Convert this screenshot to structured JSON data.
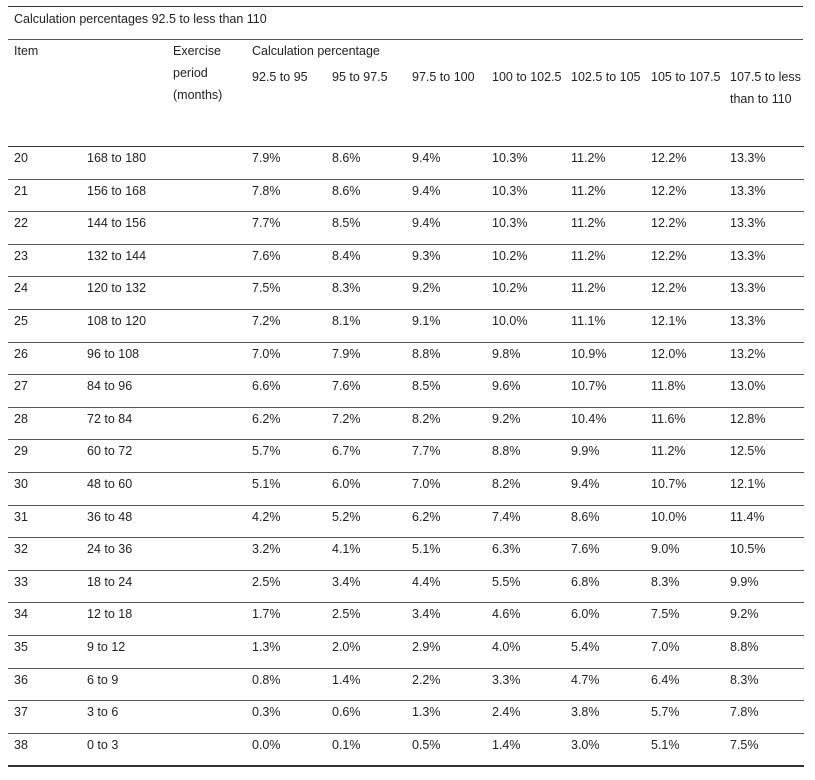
{
  "caption": "Calculation percentages 92.5 to less than 110",
  "headers": {
    "item": "Item",
    "exercise_period": "Exercise period (months)",
    "calc_group": "Calculation percentage",
    "bands": [
      "92.5 to 95",
      "95 to 97.5",
      "97.5 to 100",
      "100 to 102.5",
      "102.5 to 105",
      "105 to 107.5",
      "107.5 to less than to 110"
    ]
  },
  "rows": [
    {
      "item": "20",
      "period": "168 to 180",
      "values": [
        "7.9%",
        "8.6%",
        "9.4%",
        "10.3%",
        "11.2%",
        "12.2%",
        "13.3%"
      ]
    },
    {
      "item": "21",
      "period": "156 to 168",
      "values": [
        "7.8%",
        "8.6%",
        "9.4%",
        "10.3%",
        "11.2%",
        "12.2%",
        "13.3%"
      ]
    },
    {
      "item": "22",
      "period": "144 to 156",
      "values": [
        "7.7%",
        "8.5%",
        "9.4%",
        "10.3%",
        "11.2%",
        "12.2%",
        "13.3%"
      ]
    },
    {
      "item": "23",
      "period": "132 to 144",
      "values": [
        "7.6%",
        "8.4%",
        "9.3%",
        "10.2%",
        "11.2%",
        "12.2%",
        "13.3%"
      ]
    },
    {
      "item": "24",
      "period": "120 to 132",
      "values": [
        "7.5%",
        "8.3%",
        "9.2%",
        "10.2%",
        "11.2%",
        "12.2%",
        "13.3%"
      ]
    },
    {
      "item": "25",
      "period": "108 to 120",
      "values": [
        "7.2%",
        "8.1%",
        "9.1%",
        "10.0%",
        "11.1%",
        "12.1%",
        "13.3%"
      ]
    },
    {
      "item": "26",
      "period": "96 to 108",
      "values": [
        "7.0%",
        "7.9%",
        "8.8%",
        "9.8%",
        "10.9%",
        "12.0%",
        "13.2%"
      ]
    },
    {
      "item": "27",
      "period": "84 to 96",
      "values": [
        "6.6%",
        "7.6%",
        "8.5%",
        "9.6%",
        "10.7%",
        "11.8%",
        "13.0%"
      ]
    },
    {
      "item": "28",
      "period": "72 to 84",
      "values": [
        "6.2%",
        "7.2%",
        "8.2%",
        "9.2%",
        "10.4%",
        "11.6%",
        "12.8%"
      ]
    },
    {
      "item": "29",
      "period": "60 to 72",
      "values": [
        "5.7%",
        "6.7%",
        "7.7%",
        "8.8%",
        "9.9%",
        "11.2%",
        "12.5%"
      ]
    },
    {
      "item": "30",
      "period": "48 to 60",
      "values": [
        "5.1%",
        "6.0%",
        "7.0%",
        "8.2%",
        "9.4%",
        "10.7%",
        "12.1%"
      ]
    },
    {
      "item": "31",
      "period": "36 to 48",
      "values": [
        "4.2%",
        "5.2%",
        "6.2%",
        "7.4%",
        "8.6%",
        "10.0%",
        "11.4%"
      ]
    },
    {
      "item": "32",
      "period": "24 to 36",
      "values": [
        "3.2%",
        "4.1%",
        "5.1%",
        "6.3%",
        "7.6%",
        "9.0%",
        "10.5%"
      ]
    },
    {
      "item": "33",
      "period": "18 to 24",
      "values": [
        "2.5%",
        "3.4%",
        "4.4%",
        "5.5%",
        "6.8%",
        "8.3%",
        "9.9%"
      ]
    },
    {
      "item": "34",
      "period": "12 to 18",
      "values": [
        "1.7%",
        "2.5%",
        "3.4%",
        "4.6%",
        "6.0%",
        "7.5%",
        "9.2%"
      ]
    },
    {
      "item": "35",
      "period": "9 to 12",
      "values": [
        "1.3%",
        "2.0%",
        "2.9%",
        "4.0%",
        "5.4%",
        "7.0%",
        "8.8%"
      ]
    },
    {
      "item": "36",
      "period": "6 to 9",
      "values": [
        "0.8%",
        "1.4%",
        "2.2%",
        "3.3%",
        "4.7%",
        "6.4%",
        "8.3%"
      ]
    },
    {
      "item": "37",
      "period": "3 to 6",
      "values": [
        "0.3%",
        "0.6%",
        "1.3%",
        "2.4%",
        "3.8%",
        "5.7%",
        "7.8%"
      ]
    },
    {
      "item": "38",
      "period": "0 to 3",
      "values": [
        "0.0%",
        "0.1%",
        "0.5%",
        "1.4%",
        "3.0%",
        "5.1%",
        "7.5%"
      ]
    }
  ]
}
